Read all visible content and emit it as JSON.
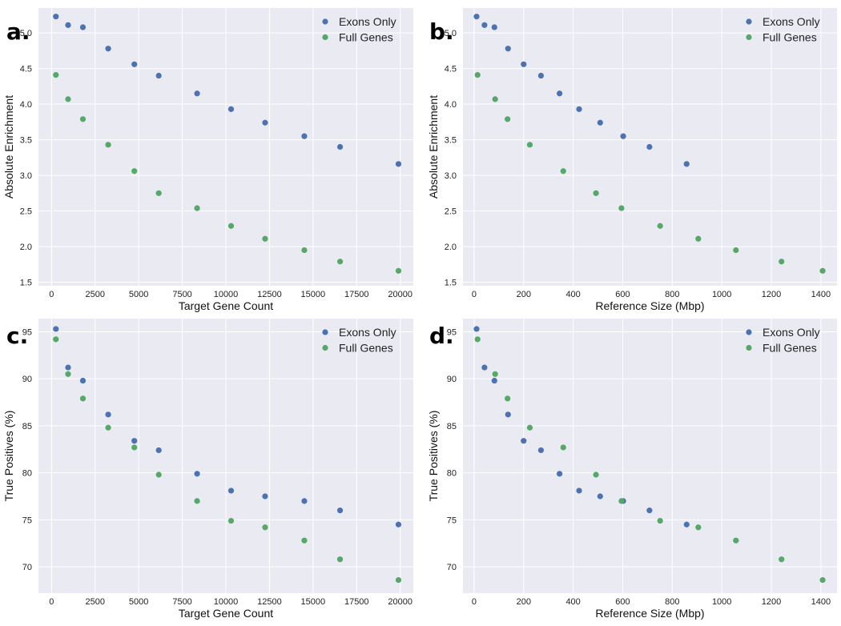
{
  "colors": {
    "exons": "#4C72B0",
    "full": "#55A868",
    "background": "#EAEAF2",
    "grid": "#FFFFFF"
  },
  "chart_data": [
    {
      "panel": "a.",
      "type": "scatter",
      "xlabel": "Target Gene Count",
      "ylabel": "Absolute Enrichment",
      "xlim": [
        -750,
        20750
      ],
      "ylim": [
        1.45,
        5.35
      ],
      "xticks": [
        0,
        2500,
        5000,
        7500,
        10000,
        12500,
        15000,
        17500,
        20000
      ],
      "yticks": [
        1.5,
        2.0,
        2.5,
        3.0,
        3.5,
        4.0,
        4.5,
        5.0
      ],
      "ytick_labels": [
        "1.5",
        "2.0",
        "2.5",
        "3.0",
        "3.5",
        "4.0",
        "4.5",
        "5.0"
      ],
      "legend": "top-right",
      "series": [
        {
          "name": "Exons Only",
          "color": "#4C72B0",
          "x": [
            250,
            950,
            1800,
            3250,
            4750,
            6150,
            8350,
            10300,
            12250,
            14500,
            16550,
            19900
          ],
          "y": [
            5.23,
            5.11,
            5.08,
            4.78,
            4.56,
            4.4,
            4.15,
            3.93,
            3.74,
            3.55,
            3.4,
            3.16
          ]
        },
        {
          "name": "Full Genes",
          "color": "#55A868",
          "x": [
            250,
            950,
            1800,
            3250,
            4750,
            6150,
            8350,
            10300,
            12250,
            14500,
            16550,
            19900
          ],
          "y": [
            4.41,
            4.07,
            3.79,
            3.43,
            3.06,
            2.75,
            2.54,
            2.29,
            2.11,
            1.95,
            1.79,
            1.66
          ]
        }
      ]
    },
    {
      "panel": "b.",
      "type": "scatter",
      "xlabel": "Reference Size (Mbp)",
      "ylabel": "Absolute Enrichment",
      "xlim": [
        -45,
        1465
      ],
      "ylim": [
        1.45,
        5.35
      ],
      "xticks": [
        0,
        200,
        400,
        600,
        800,
        1000,
        1200,
        1400
      ],
      "yticks": [
        1.5,
        2.0,
        2.5,
        3.0,
        3.5,
        4.0,
        4.5,
        5.0
      ],
      "ytick_labels": [
        "1.5",
        "2.0",
        "2.5",
        "3.0",
        "3.5",
        "4.0",
        "4.5",
        "5.0"
      ],
      "legend": "top-right",
      "series": [
        {
          "name": "Exons Only",
          "color": "#4C72B0",
          "x": [
            10,
            42,
            82,
            137,
            200,
            270,
            345,
            424,
            509,
            602,
            708,
            858
          ],
          "y": [
            5.23,
            5.11,
            5.08,
            4.78,
            4.56,
            4.4,
            4.15,
            3.93,
            3.74,
            3.55,
            3.4,
            3.16
          ]
        },
        {
          "name": "Full Genes",
          "color": "#55A868",
          "x": [
            14,
            85,
            135,
            225,
            360,
            492,
            595,
            751,
            905,
            1057,
            1241,
            1407
          ],
          "y": [
            4.41,
            4.07,
            3.79,
            3.43,
            3.06,
            2.75,
            2.54,
            2.29,
            2.11,
            1.95,
            1.79,
            1.66
          ]
        }
      ]
    },
    {
      "panel": "c.",
      "type": "scatter",
      "xlabel": "Target Gene Count",
      "ylabel": "True Positives (%)",
      "xlim": [
        -750,
        20750
      ],
      "ylim": [
        67.2,
        96.4
      ],
      "xticks": [
        0,
        2500,
        5000,
        7500,
        10000,
        12500,
        15000,
        17500,
        20000
      ],
      "yticks": [
        70,
        75,
        80,
        85,
        90,
        95
      ],
      "ytick_labels": [
        "70",
        "75",
        "80",
        "85",
        "90",
        "95"
      ],
      "legend": "top-right",
      "series": [
        {
          "name": "Exons Only",
          "color": "#4C72B0",
          "x": [
            250,
            950,
            1800,
            3250,
            4750,
            6150,
            8350,
            10300,
            12250,
            14500,
            16550,
            19900
          ],
          "y": [
            95.3,
            91.2,
            89.8,
            86.2,
            83.4,
            82.4,
            79.9,
            78.1,
            77.5,
            77.0,
            76.0,
            74.5
          ]
        },
        {
          "name": "Full Genes",
          "color": "#55A868",
          "x": [
            250,
            950,
            1800,
            3250,
            4750,
            6150,
            8350,
            10300,
            12250,
            14500,
            16550,
            19900
          ],
          "y": [
            94.2,
            90.5,
            87.9,
            84.8,
            82.7,
            79.8,
            77.0,
            74.9,
            74.2,
            72.8,
            70.8,
            68.6
          ]
        }
      ]
    },
    {
      "panel": "d.",
      "type": "scatter",
      "xlabel": "Reference Size (Mbp)",
      "ylabel": "True Positives (%)",
      "xlim": [
        -45,
        1465
      ],
      "ylim": [
        67.2,
        96.4
      ],
      "xticks": [
        0,
        200,
        400,
        600,
        800,
        1000,
        1200,
        1400
      ],
      "yticks": [
        70,
        75,
        80,
        85,
        90,
        95
      ],
      "ytick_labels": [
        "70",
        "75",
        "80",
        "85",
        "90",
        "95"
      ],
      "legend": "top-right",
      "series": [
        {
          "name": "Exons Only",
          "color": "#4C72B0",
          "x": [
            10,
            42,
            82,
            137,
            200,
            270,
            345,
            424,
            509,
            602,
            708,
            858
          ],
          "y": [
            95.3,
            91.2,
            89.8,
            86.2,
            83.4,
            82.4,
            79.9,
            78.1,
            77.5,
            77.0,
            76.0,
            74.5
          ]
        },
        {
          "name": "Full Genes",
          "color": "#55A868",
          "x": [
            14,
            85,
            135,
            225,
            360,
            492,
            595,
            751,
            905,
            1057,
            1241,
            1407
          ],
          "y": [
            94.2,
            90.5,
            87.9,
            84.8,
            82.7,
            79.8,
            77.0,
            74.9,
            74.2,
            72.8,
            70.8,
            68.6
          ]
        }
      ]
    }
  ]
}
